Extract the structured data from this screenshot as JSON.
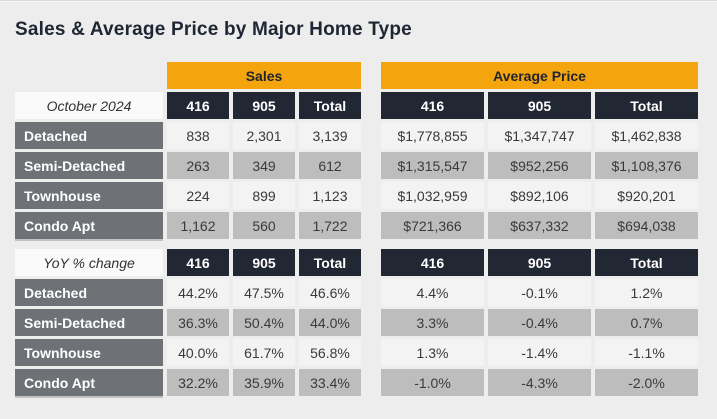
{
  "title": "Sales & Average Price by Major Home Type",
  "colors": {
    "page_background": "#EDEDED",
    "accent_orange": "#F4A50E",
    "header_navy": "#222734",
    "row_label_gray": "#6E7176",
    "row_light": "#F3F3F3",
    "row_dark": "#BDBDBD"
  },
  "table": {
    "group_headers": [
      "Sales",
      "Average Price"
    ],
    "col_headers": [
      "416",
      "905",
      "Total"
    ],
    "sections": [
      {
        "label": "October 2024",
        "rows": [
          {
            "name": "Detached",
            "sales": [
              "838",
              "2,301",
              "3,139"
            ],
            "avg": [
              "$1,778,855",
              "$1,347,747",
              "$1,462,838"
            ]
          },
          {
            "name": "Semi-Detached",
            "sales": [
              "263",
              "349",
              "612"
            ],
            "avg": [
              "$1,315,547",
              "$952,256",
              "$1,108,376"
            ]
          },
          {
            "name": "Townhouse",
            "sales": [
              "224",
              "899",
              "1,123"
            ],
            "avg": [
              "$1,032,959",
              "$892,106",
              "$920,201"
            ]
          },
          {
            "name": "Condo Apt",
            "sales": [
              "1,162",
              "560",
              "1,722"
            ],
            "avg": [
              "$721,366",
              "$637,332",
              "$694,038"
            ]
          }
        ]
      },
      {
        "label": "YoY % change",
        "rows": [
          {
            "name": "Detached",
            "sales": [
              "44.2%",
              "47.5%",
              "46.6%"
            ],
            "avg": [
              "4.4%",
              "-0.1%",
              "1.2%"
            ]
          },
          {
            "name": "Semi-Detached",
            "sales": [
              "36.3%",
              "50.4%",
              "44.0%"
            ],
            "avg": [
              "3.3%",
              "-0.4%",
              "0.7%"
            ]
          },
          {
            "name": "Townhouse",
            "sales": [
              "40.0%",
              "61.7%",
              "56.8%"
            ],
            "avg": [
              "1.3%",
              "-1.4%",
              "-1.1%"
            ]
          },
          {
            "name": "Condo Apt",
            "sales": [
              "32.2%",
              "35.9%",
              "33.4%"
            ],
            "avg": [
              "-1.0%",
              "-4.3%",
              "-2.0%"
            ]
          }
        ]
      }
    ]
  },
  "chart_data": {
    "type": "table",
    "title": "Sales & Average Price by Major Home Type",
    "column_groups": [
      "Sales",
      "Average Price"
    ],
    "columns": [
      "416",
      "905",
      "Total"
    ],
    "sections": [
      {
        "label": "October 2024",
        "rows": [
          {
            "home_type": "Detached",
            "sales": [
              838,
              2301,
              3139
            ],
            "average_price": [
              1778855,
              1347747,
              1462838
            ]
          },
          {
            "home_type": "Semi-Detached",
            "sales": [
              263,
              349,
              612
            ],
            "average_price": [
              1315547,
              952256,
              1108376
            ]
          },
          {
            "home_type": "Townhouse",
            "sales": [
              224,
              899,
              1123
            ],
            "average_price": [
              1032959,
              892106,
              920201
            ]
          },
          {
            "home_type": "Condo Apt",
            "sales": [
              1162,
              560,
              1722
            ],
            "average_price": [
              721366,
              637332,
              694038
            ]
          }
        ]
      },
      {
        "label": "YoY % change",
        "rows": [
          {
            "home_type": "Detached",
            "sales_pct": [
              44.2,
              47.5,
              46.6
            ],
            "average_price_pct": [
              4.4,
              -0.1,
              1.2
            ]
          },
          {
            "home_type": "Semi-Detached",
            "sales_pct": [
              36.3,
              50.4,
              44.0
            ],
            "average_price_pct": [
              3.3,
              -0.4,
              0.7
            ]
          },
          {
            "home_type": "Townhouse",
            "sales_pct": [
              40.0,
              61.7,
              56.8
            ],
            "average_price_pct": [
              1.3,
              -1.4,
              -1.1
            ]
          },
          {
            "home_type": "Condo Apt",
            "sales_pct": [
              32.2,
              35.9,
              33.4
            ],
            "average_price_pct": [
              -1.0,
              -4.3,
              -2.0
            ]
          }
        ]
      }
    ]
  }
}
